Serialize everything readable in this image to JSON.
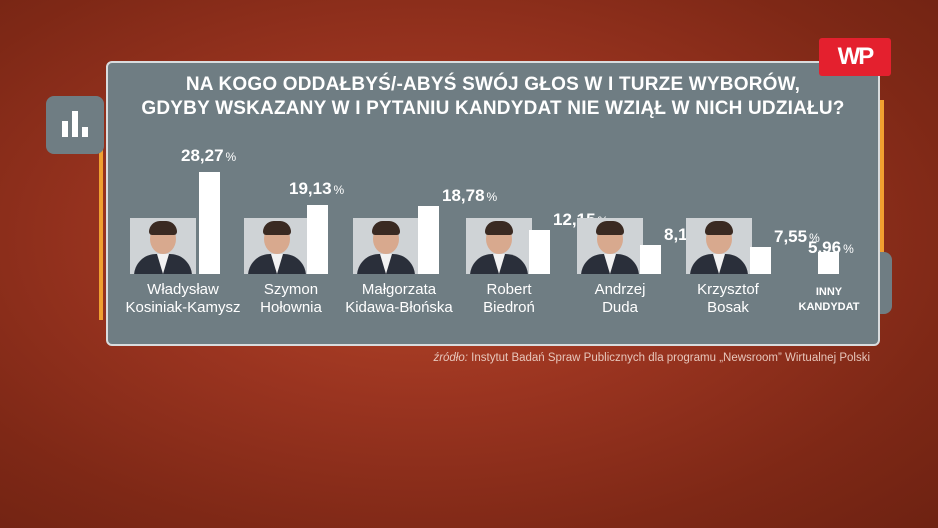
{
  "title": {
    "line1": "NA KOGO ODDAŁBYŚ/-ABYŚ SWÓJ GŁOS W I TURZE WYBORÓW,",
    "line2": "GDYBY WSKAZANY W I PYTANIU KANDYDAT NIE WZIĄŁ W NICH UDZIAŁU?"
  },
  "logo": {
    "text": "WP"
  },
  "icon": "bar-chart-icon",
  "colors": {
    "background": "#9a3420",
    "panel": "#6f7d83",
    "bars": "#ffffff",
    "accent": "#f0a030",
    "logo": "#e4202e"
  },
  "source": {
    "label": "źródło:",
    "text": "Instytut Badań Spraw Publicznych dla programu „Newsroom” Wirtualnej Polski"
  },
  "unit": "%",
  "chart_data": {
    "type": "bar",
    "categories": [
      "Władysław Kosiniak-Kamysz",
      "Szymon Hołownia",
      "Małgorzata Kidawa-Błońska",
      "Robert Biedroń",
      "Andrzej Duda",
      "Krzysztof Bosak",
      "INNY KANDYDAT"
    ],
    "values": [
      28.27,
      19.13,
      18.78,
      12.15,
      8.16,
      7.55,
      5.96
    ],
    "value_labels": [
      "28,27",
      "19,13",
      "18,78",
      "12,15",
      "8,16",
      "7,55",
      "5,96"
    ],
    "ylim": [
      0,
      30
    ],
    "grid": false,
    "legend": "none"
  },
  "candidates": [
    {
      "line1": "Władysław",
      "line2": "Kosiniak-Kamysz",
      "value": "28,27"
    },
    {
      "line1": "Szymon",
      "line2": "Hołownia",
      "value": "19,13"
    },
    {
      "line1": "Małgorzata",
      "line2": "Kidawa-Błońska",
      "value": "18,78"
    },
    {
      "line1": "Robert",
      "line2": "Biedroń",
      "value": "12,15"
    },
    {
      "line1": "Andrzej",
      "line2": "Duda",
      "value": "8,16"
    },
    {
      "line1": "Krzysztof",
      "line2": "Bosak",
      "value": "7,55"
    },
    {
      "line1": "INNY",
      "line2": "KANDYDAT",
      "value": "5,96"
    }
  ]
}
